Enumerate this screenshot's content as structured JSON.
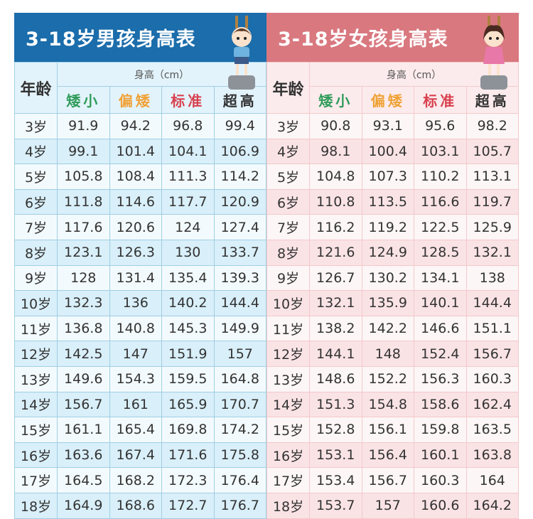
{
  "boys": {
    "title": "3-18岁男孩身高表",
    "age_header": "年龄",
    "height_header": "身高（cm）",
    "columns": [
      "矮小",
      "偏矮",
      "标准",
      "超高"
    ],
    "rows": [
      [
        "3岁",
        "91.9",
        "94.2",
        "96.8",
        "99.4"
      ],
      [
        "4岁",
        "99.1",
        "101.4",
        "104.1",
        "106.9"
      ],
      [
        "5岁",
        "105.8",
        "108.4",
        "111.3",
        "114.2"
      ],
      [
        "6岁",
        "111.8",
        "114.6",
        "117.7",
        "120.9"
      ],
      [
        "7岁",
        "117.6",
        "120.6",
        "124",
        "127.4"
      ],
      [
        "8岁",
        "123.1",
        "126.3",
        "130",
        "133.7"
      ],
      [
        "9岁",
        "128",
        "131.4",
        "135.4",
        "139.3"
      ],
      [
        "10岁",
        "132.3",
        "136",
        "140.2",
        "144.4"
      ],
      [
        "11岁",
        "136.8",
        "140.8",
        "145.3",
        "149.9"
      ],
      [
        "12岁",
        "142.5",
        "147",
        "151.9",
        "157"
      ],
      [
        "13岁",
        "149.6",
        "154.3",
        "159.5",
        "164.8"
      ],
      [
        "14岁",
        "156.7",
        "161",
        "165.9",
        "170.7"
      ],
      [
        "15岁",
        "161.1",
        "165.4",
        "169.8",
        "174.2"
      ],
      [
        "16岁",
        "163.6",
        "167.4",
        "171.6",
        "175.8"
      ],
      [
        "17岁",
        "164.5",
        "168.2",
        "172.3",
        "176.4"
      ],
      [
        "18岁",
        "164.9",
        "168.6",
        "172.7",
        "176.7"
      ]
    ]
  },
  "girls": {
    "title": "3-18岁女孩身高表",
    "age_header": "年龄",
    "height_header": "身高（cm）",
    "columns": [
      "矮小",
      "偏矮",
      "标准",
      "超高"
    ],
    "rows": [
      [
        "3岁",
        "90.8",
        "93.1",
        "95.6",
        "98.2"
      ],
      [
        "4岁",
        "98.1",
        "100.4",
        "103.1",
        "105.7"
      ],
      [
        "5岁",
        "104.8",
        "107.3",
        "110.2",
        "113.1"
      ],
      [
        "6岁",
        "110.8",
        "113.5",
        "116.6",
        "119.7"
      ],
      [
        "7岁",
        "116.2",
        "119.2",
        "122.5",
        "125.9"
      ],
      [
        "8岁",
        "121.6",
        "124.9",
        "128.5",
        "132.1"
      ],
      [
        "9岁",
        "126.7",
        "130.2",
        "134.1",
        "138"
      ],
      [
        "10岁",
        "132.1",
        "135.9",
        "140.1",
        "144.4"
      ],
      [
        "11岁",
        "138.2",
        "142.2",
        "146.6",
        "151.1"
      ],
      [
        "12岁",
        "144.1",
        "148",
        "152.4",
        "156.7"
      ],
      [
        "13岁",
        "148.6",
        "152.2",
        "156.3",
        "160.3"
      ],
      [
        "14岁",
        "151.3",
        "154.8",
        "158.6",
        "162.4"
      ],
      [
        "15岁",
        "152.8",
        "156.1",
        "159.8",
        "163.5"
      ],
      [
        "16岁",
        "153.1",
        "156.4",
        "160.1",
        "163.8"
      ],
      [
        "17岁",
        "153.4",
        "156.7",
        "160.3",
        "164"
      ],
      [
        "18岁",
        "153.7",
        "157",
        "160.6",
        "164.2"
      ]
    ]
  },
  "colors": {
    "boys_title_bg": "#1b6dab",
    "girls_title_bg": "#d9787f",
    "column_colors": [
      "#2e9c5a",
      "#f0a236",
      "#d8404e",
      "#333333"
    ]
  }
}
